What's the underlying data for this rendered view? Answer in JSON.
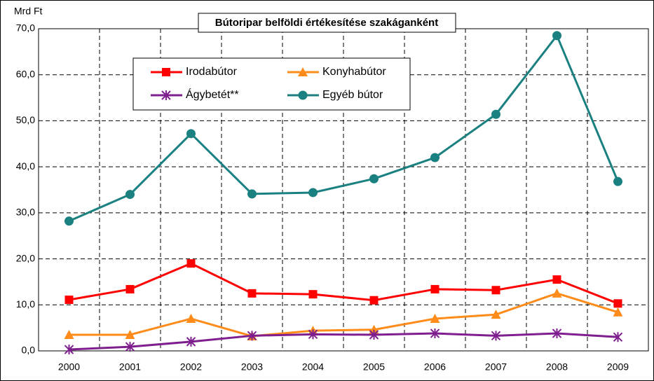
{
  "chart_data": {
    "type": "line",
    "title": "Bútoripar belföldi értékesítése szakáganként",
    "y_label": "Mrd Ft",
    "categories": [
      "2000",
      "2001",
      "2002",
      "2003",
      "2004",
      "2005",
      "2006",
      "2007",
      "2008",
      "2009"
    ],
    "series": [
      {
        "name": "Irodabútor",
        "color": "#ff0000",
        "marker": "square",
        "values": [
          11.1,
          13.4,
          19.0,
          12.5,
          12.3,
          11.0,
          13.4,
          13.2,
          15.5,
          10.3
        ]
      },
      {
        "name": "Konyhabútor",
        "color": "#ff8c1a",
        "marker": "triangle",
        "values": [
          3.5,
          3.5,
          7.0,
          3.2,
          4.4,
          4.6,
          7.0,
          7.9,
          12.5,
          8.4
        ]
      },
      {
        "name": "Ágybetét**",
        "color": "#7f1f8f",
        "marker": "asterisk",
        "values": [
          0.3,
          0.9,
          2.0,
          3.3,
          3.6,
          3.5,
          3.8,
          3.3,
          3.8,
          3.0
        ]
      },
      {
        "name": "Egyéb bútor",
        "color": "#1a8080",
        "marker": "circle",
        "values": [
          28.2,
          34.0,
          47.2,
          34.1,
          34.4,
          37.4,
          42.0,
          51.4,
          68.5,
          36.8
        ]
      }
    ],
    "ylim": [
      0,
      70
    ],
    "yticks": [
      {
        "value": 0,
        "label": "0,0"
      },
      {
        "value": 10,
        "label": "10,0"
      },
      {
        "value": 20,
        "label": "20,0"
      },
      {
        "value": 30,
        "label": "30,0"
      },
      {
        "value": 40,
        "label": "40,0"
      },
      {
        "value": 50,
        "label": "50,0"
      },
      {
        "value": 60,
        "label": "60,0"
      },
      {
        "value": 70,
        "label": "70,0"
      }
    ],
    "grid": true
  }
}
